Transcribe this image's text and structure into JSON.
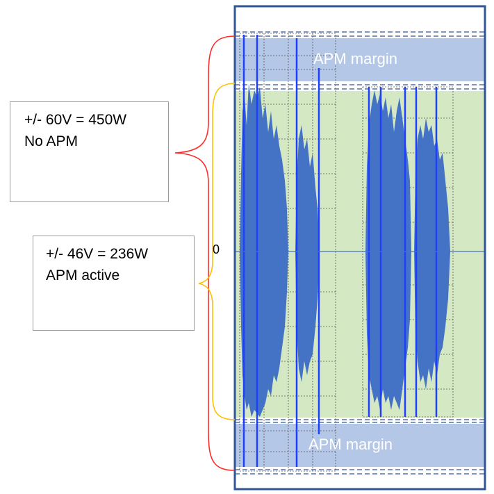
{
  "callouts": {
    "no_apm": {
      "line1": "+/- 60V = 450W",
      "line2": "No APM"
    },
    "apm_active": {
      "line1": "+/- 46V = 236W",
      "line2": "APM active"
    }
  },
  "axis": {
    "zero_label": "0"
  },
  "bands": {
    "top_margin_label": "APM margin",
    "bottom_margin_label": "APM margin"
  },
  "colors": {
    "margin_band": "#b4c7e7",
    "active_band": "#d5e8c4",
    "waveform": "#4472c4",
    "spike": "#1f3fff",
    "frame": "#2f5597",
    "brace_no_apm": "#ff2a2a",
    "brace_apm": "#ffc000"
  }
}
